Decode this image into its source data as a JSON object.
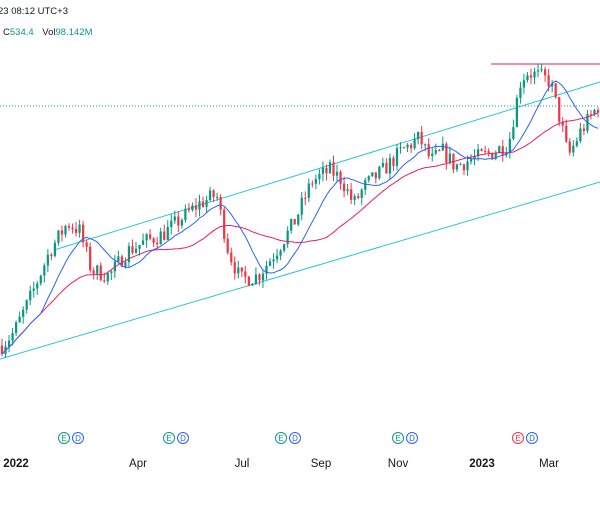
{
  "header": {
    "time_label": "23 08:12 UTC+3",
    "close_label": "C",
    "close_value": "534.4",
    "vol_label": "Vol",
    "vol_value": "98.142M"
  },
  "xaxis": {
    "labels": [
      "2022",
      "Apr",
      "Jul",
      "Sep",
      "Nov",
      "2023",
      "Mar"
    ]
  },
  "events": [
    {
      "earnings": "E",
      "dividend": "D",
      "negative": false
    },
    {
      "earnings": "E",
      "dividend": "D",
      "negative": false
    },
    {
      "earnings": "E",
      "dividend": "D",
      "negative": false
    },
    {
      "earnings": "E",
      "dividend": "D",
      "negative": false
    },
    {
      "earnings": "E",
      "dividend": "D",
      "negative": true
    }
  ],
  "colors": {
    "up": "#089981",
    "down": "#f23645",
    "ma_fast": "#2962ff",
    "ma_slow": "#e91e63",
    "channel": "#26c6da",
    "hline": "#e91e63",
    "dotted_level": "#089981"
  },
  "chart_data": {
    "type": "candlestick",
    "title": "",
    "xlabel": "",
    "ylabel": "",
    "x_tick_labels": [
      "2022",
      "Apr",
      "Jul",
      "Sep",
      "Nov",
      "2023",
      "Mar"
    ],
    "grid": false,
    "overlays": [
      "moving-average-fast",
      "moving-average-slow",
      "parallel-channel",
      "horizontal-line",
      "dotted-price-level"
    ],
    "anchors": [
      [
        0,
        0.05
      ],
      [
        0.02,
        0.12
      ],
      [
        0.05,
        0.32
      ],
      [
        0.08,
        0.55
      ],
      [
        0.11,
        0.7
      ],
      [
        0.13,
        0.66
      ],
      [
        0.15,
        0.45
      ],
      [
        0.18,
        0.42
      ],
      [
        0.21,
        0.55
      ],
      [
        0.24,
        0.6
      ],
      [
        0.27,
        0.64
      ],
      [
        0.3,
        0.72
      ],
      [
        0.33,
        0.8
      ],
      [
        0.36,
        0.85
      ],
      [
        0.38,
        0.55
      ],
      [
        0.4,
        0.4
      ],
      [
        0.43,
        0.42
      ],
      [
        0.46,
        0.55
      ],
      [
        0.49,
        0.7
      ],
      [
        0.52,
        0.92
      ],
      [
        0.55,
        0.98
      ],
      [
        0.57,
        0.93
      ],
      [
        0.59,
        0.8
      ],
      [
        0.61,
        0.9
      ],
      [
        0.64,
        0.98
      ],
      [
        0.67,
        1.08
      ],
      [
        0.7,
        1.15
      ],
      [
        0.72,
        1.03
      ],
      [
        0.74,
        1.08
      ],
      [
        0.76,
        1.0
      ],
      [
        0.79,
        1.04
      ],
      [
        0.82,
        1.07
      ],
      [
        0.85,
        1.12
      ],
      [
        0.87,
        1.45
      ],
      [
        0.88,
        1.5
      ],
      [
        0.9,
        1.48
      ],
      [
        0.92,
        1.45
      ],
      [
        0.94,
        1.2
      ],
      [
        0.95,
        1.05
      ],
      [
        0.97,
        1.18
      ],
      [
        1.0,
        1.32
      ]
    ]
  }
}
